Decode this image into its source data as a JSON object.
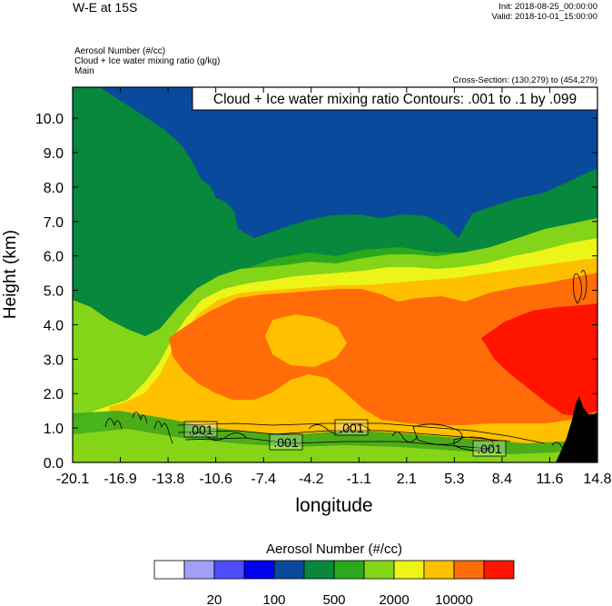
{
  "header": {
    "title": "W-E at 15S",
    "init": "Init: 2018-08-25_00:00:00",
    "valid": "Valid: 2018-10-01_15:00:00",
    "fields": [
      "Aerosol Number   (#/cc)",
      "Cloud + Ice water mixing ratio   (g/kg)",
      "Main"
    ],
    "cross_section": "Cross-Section: (130,279) to (454,279)"
  },
  "chart_data": {
    "type": "heatmap",
    "title": "W-E at 15S",
    "xlabel": "longitude",
    "ylabel": "Height (km)",
    "x_ticks": [
      "-20.1",
      "-16.9",
      "-13.8",
      "-10.6",
      "-7.4",
      "-4.2",
      "-1.1",
      "2.1",
      "5.3",
      "8.4",
      "11.6",
      "14.8"
    ],
    "y_ticks": [
      "0.0",
      "1.0",
      "2.0",
      "3.0",
      "4.0",
      "5.0",
      "6.0",
      "7.0",
      "8.0",
      "9.0",
      "10.0"
    ],
    "xlim": [
      -20.1,
      14.8
    ],
    "ylim": [
      0.0,
      10.9
    ],
    "contour_note": "Cloud + Ice water mixing ratio Contours: .001 to .1 by .099",
    "contour_labels": [
      ".001",
      ".001",
      ".001",
      ".001"
    ],
    "colorbar": {
      "title": "Aerosol Number  (#/cc)",
      "labels": [
        "20",
        "100",
        "500",
        "2000",
        "10000"
      ],
      "colors": [
        "#ffffff",
        "#a0a0f8",
        "#4d4dff",
        "#0000f0",
        "#0a4a9c",
        "#07883c",
        "#2ca81c",
        "#84d418",
        "#ecf418",
        "#ffc000",
        "#ff6c08",
        "#ff1400"
      ]
    },
    "palette": {
      "darkblue": "#0a4a9c",
      "darkgreen": "#07883c",
      "green": "#2ca81c",
      "lime": "#84d418",
      "yellow": "#ecf418",
      "gold": "#ffc000",
      "orange": "#ff6c08",
      "red": "#ff1400",
      "terrain": "#000000"
    }
  }
}
